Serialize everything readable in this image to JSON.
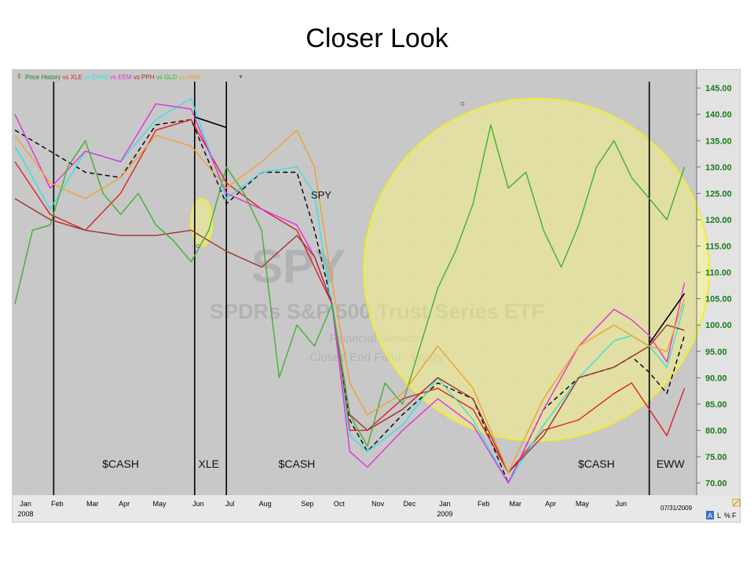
{
  "slide_title": "Closer Look",
  "chart_data": {
    "type": "line",
    "legend_placement": "top-left",
    "legend": {
      "prefix": "Price History",
      "entries": [
        {
          "text": "vs XLE",
          "color": "#e02020"
        },
        {
          "text": "vs EWW",
          "color": "#38e0e0"
        },
        {
          "text": "vs EEM",
          "color": "#e030e0"
        },
        {
          "text": "vs PPH",
          "color": "#a03030"
        },
        {
          "text": "vs GLD",
          "color": "#40b030"
        },
        {
          "text": "vs IWM",
          "color": "#f0a030"
        }
      ]
    },
    "watermark": {
      "ticker": "SPY",
      "name": "SPDRs S&P 500 Trust Series ETF",
      "line1": "Financial Services",
      "line2": "Closed End Fund - Equity"
    },
    "ylim": [
      68,
      148
    ],
    "yticks": [
      70,
      75,
      80,
      85,
      90,
      95,
      100,
      105,
      110,
      115,
      120,
      125,
      130,
      135,
      140,
      145
    ],
    "ytick_labels": [
      "70.00",
      "75.00",
      "80.00",
      "85.00",
      "90.00",
      "95.00",
      "100.00",
      "105.00",
      "110.00",
      "115.00",
      "120.00",
      "125.00",
      "130.00",
      "135.00",
      "140.00",
      "145.00"
    ],
    "xlim": [
      0,
      19.3
    ],
    "xticks": [
      {
        "t": 0.3,
        "label": "Jan"
      },
      {
        "t": 1.2,
        "label": "Feb"
      },
      {
        "t": 2.2,
        "label": "Mar"
      },
      {
        "t": 3.1,
        "label": "Apr"
      },
      {
        "t": 4.1,
        "label": "May"
      },
      {
        "t": 5.2,
        "label": "Jun"
      },
      {
        "t": 6.1,
        "label": "Jul"
      },
      {
        "t": 7.1,
        "label": "Aug"
      },
      {
        "t": 8.3,
        "label": "Sep"
      },
      {
        "t": 9.2,
        "label": "Oct"
      },
      {
        "t": 10.3,
        "label": "Nov"
      },
      {
        "t": 11.2,
        "label": "Dec"
      },
      {
        "t": 12.2,
        "label": "Jan"
      },
      {
        "t": 13.3,
        "label": "Feb"
      },
      {
        "t": 14.2,
        "label": "Mar"
      },
      {
        "t": 15.2,
        "label": "Apr"
      },
      {
        "t": 16.1,
        "label": "May"
      },
      {
        "t": 17.2,
        "label": "Jun"
      }
    ],
    "year_labels": [
      {
        "t": 0.3,
        "label": "2008"
      },
      {
        "t": 12.2,
        "label": "2009"
      }
    ],
    "end_date": "07/31/2009",
    "corner_buttons": [
      "A",
      "L",
      "%",
      "F"
    ],
    "vlines": [
      1.1,
      5.1,
      6.0,
      18.0
    ],
    "regions": [
      {
        "t": 3.0,
        "label": "$CASH"
      },
      {
        "t": 5.5,
        "label": "XLE"
      },
      {
        "t": 8.0,
        "label": "$CASH"
      },
      {
        "t": 16.5,
        "label": "$CASH"
      },
      {
        "t": 18.6,
        "label": "EWW"
      }
    ],
    "annotations": [
      {
        "t": 8.4,
        "y": 124,
        "text": "SPY"
      }
    ],
    "series": [
      {
        "name": "SPY",
        "color": "#000000",
        "dashed": true,
        "x": [
          0,
          1,
          2,
          3,
          4,
          5,
          6,
          7,
          8,
          8.5,
          9,
          9.5,
          10,
          11,
          12,
          13,
          14,
          15,
          16,
          17,
          17.5,
          18,
          18.5,
          19
        ],
        "y": [
          137,
          133,
          129,
          128,
          138,
          139,
          123,
          129,
          129,
          118,
          104,
          82,
          76,
          83,
          89,
          86,
          70,
          84,
          90,
          92,
          94,
          91,
          87,
          98
        ]
      },
      {
        "name": "XLE",
        "color": "#e02020",
        "x": [
          0,
          1,
          2,
          3,
          4,
          5,
          6,
          7,
          8,
          8.5,
          9,
          9.5,
          10,
          11,
          12,
          13,
          14,
          15,
          16,
          17,
          17.5,
          18,
          18.5,
          19
        ],
        "y": [
          131,
          121,
          118,
          125,
          137,
          139,
          127,
          122,
          118,
          111,
          104,
          80,
          80,
          86,
          88,
          84,
          72,
          80,
          82,
          87,
          89,
          84,
          79,
          88
        ]
      },
      {
        "name": "EWW",
        "color": "#38e0e0",
        "x": [
          0,
          1,
          2,
          3,
          4,
          5,
          6,
          7,
          8,
          8.5,
          9,
          9.5,
          10,
          11,
          12,
          13,
          14,
          15,
          16,
          17,
          17.5,
          18,
          18.5,
          19
        ],
        "y": [
          134,
          122,
          133,
          131,
          139,
          143,
          124,
          129,
          130,
          125,
          103,
          79,
          76,
          81,
          90,
          82,
          70,
          81,
          90,
          97,
          98,
          96,
          92,
          104
        ]
      },
      {
        "name": "EEM",
        "color": "#e030e0",
        "x": [
          0,
          1,
          2,
          3,
          4,
          5,
          6,
          7,
          8,
          8.5,
          9,
          9.5,
          10,
          11,
          12,
          13,
          14,
          15,
          16,
          17,
          17.5,
          18,
          18.5,
          19
        ],
        "y": [
          140,
          126,
          133,
          131,
          142,
          141,
          125,
          122,
          119,
          113,
          104,
          76,
          73,
          80,
          86,
          81,
          70,
          84,
          96,
          103,
          101,
          98,
          93,
          108
        ]
      },
      {
        "name": "PPH",
        "color": "#a03030",
        "x": [
          0,
          1,
          2,
          3,
          4,
          5,
          6,
          7,
          8,
          8.5,
          9,
          9.5,
          10,
          11,
          12,
          13,
          14,
          15,
          16,
          17,
          17.5,
          18,
          18.5,
          19
        ],
        "y": [
          124,
          120,
          118,
          117,
          117,
          118,
          114,
          111,
          117,
          113,
          104,
          83,
          80,
          84,
          90,
          86,
          72,
          79,
          90,
          92,
          94,
          96,
          100,
          99
        ]
      },
      {
        "name": "GLD",
        "color": "#40b030",
        "x": [
          0,
          0.5,
          1,
          1.5,
          2,
          2.5,
          3,
          3.5,
          4,
          4.5,
          5,
          5.5,
          6,
          6.5,
          7,
          7.5,
          8,
          8.5,
          9,
          9.5,
          10,
          10.5,
          11,
          11.5,
          12,
          12.5,
          13,
          13.5,
          14,
          14.5,
          15,
          15.5,
          16,
          16.5,
          17,
          17.5,
          18,
          18.5,
          19
        ],
        "y": [
          104,
          118,
          119,
          130,
          135,
          125,
          121,
          125,
          119,
          116,
          112,
          118,
          130,
          125,
          118,
          90,
          100,
          96,
          104,
          83,
          77,
          89,
          85,
          96,
          107,
          114,
          123,
          138,
          126,
          129,
          118,
          111,
          119,
          130,
          135,
          128,
          124,
          120,
          130
        ]
      },
      {
        "name": "IWM",
        "color": "#f0a030",
        "x": [
          0,
          1,
          2,
          3,
          4,
          5,
          6,
          7,
          8,
          8.5,
          9,
          9.5,
          10,
          11,
          12,
          13,
          14,
          15,
          16,
          17,
          17.5,
          18,
          18.5,
          19
        ],
        "y": [
          136,
          127,
          124,
          128,
          136,
          134,
          126,
          131,
          137,
          130,
          108,
          89,
          83,
          87,
          96,
          88,
          72,
          86,
          96,
          100,
          98,
          96,
          95,
          105
        ]
      }
    ],
    "highlights": [
      {
        "type": "ellipse",
        "cx": 5.3,
        "cy": 119.5,
        "rx": 0.3,
        "ry": 4.5
      },
      {
        "type": "ellipse",
        "cx": 14.8,
        "cy": 110.5,
        "rx": 4.9,
        "ry": 32.5
      }
    ],
    "trend_lines": [
      {
        "x": [
          5.1,
          6.0
        ],
        "y": [
          139.5,
          137.5
        ]
      },
      {
        "x": [
          18.0,
          19.0
        ],
        "y": [
          96.5,
          106
        ]
      }
    ],
    "markers": [
      {
        "t": 5.2,
        "y": 115
      },
      {
        "t": 12.7,
        "y": 142
      }
    ]
  }
}
